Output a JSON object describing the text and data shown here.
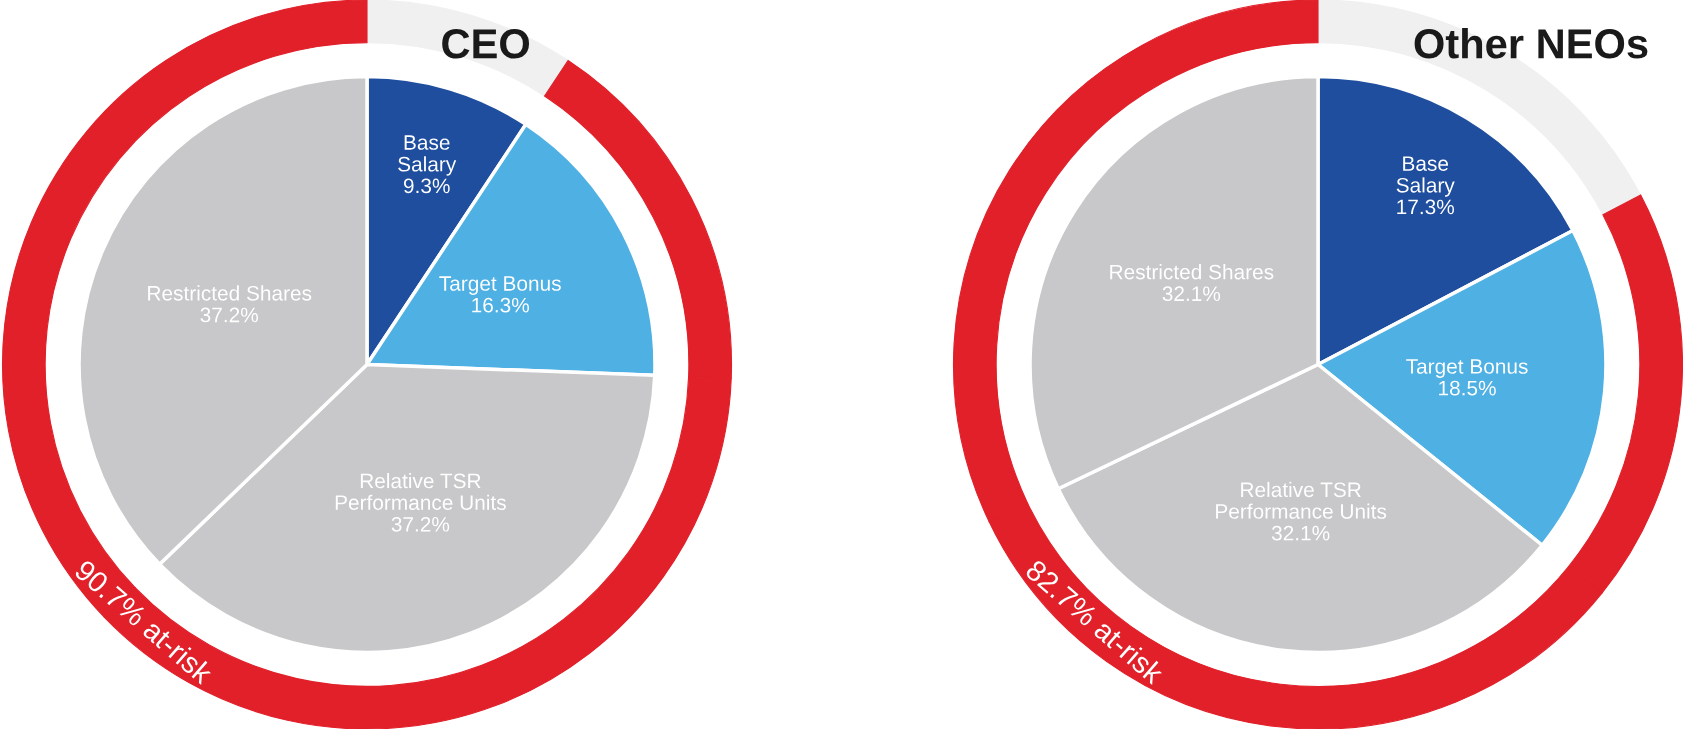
{
  "chart_data": [
    {
      "type": "pie",
      "title": "CEO",
      "categories": [
        "Base Salary",
        "Target Bonus",
        "Relative TSR Performance Units",
        "Restricted Shares"
      ],
      "annotations": [
        "90.7% at-risk"
      ],
      "series": [
        {
          "type": "donut",
          "values": [
            9.3,
            16.3,
            37.2,
            37.2
          ],
          "colors": [
            "#f0f0f0",
            "#e1202a",
            "#e1202a",
            "#e1202a"
          ]
        },
        {
          "type": "pie",
          "values": [
            9.3,
            16.3,
            37.2,
            37.2
          ],
          "colors": [
            "#1f4e9e",
            "#4fb0e3",
            "#c8c8ca",
            "#c8c8ca"
          ],
          "value_labels": [
            "9.3%",
            "16.3%",
            "37.2%",
            "37.2%"
          ]
        }
      ]
    },
    {
      "type": "pie",
      "title": "Other NEOs",
      "categories": [
        "Base Salary",
        "Target Bonus",
        "Relative TSR Performance Units",
        "Restricted Shares"
      ],
      "annotations": [
        "82.7% at-risk"
      ],
      "series": [
        {
          "type": "donut",
          "values": [
            17.3,
            18.5,
            32.1,
            32.1
          ],
          "colors": [
            "#f0f0f0",
            "#e1202a",
            "#e1202a",
            "#e1202a"
          ]
        },
        {
          "type": "pie",
          "values": [
            17.3,
            18.5,
            32.1,
            32.1
          ],
          "colors": [
            "#1f4e9e",
            "#4fb0e3",
            "#c8c8ca",
            "#c8c8ca"
          ],
          "value_labels": [
            "17.3%",
            "18.5%",
            "32.1%",
            "32.1%"
          ]
        }
      ]
    }
  ]
}
